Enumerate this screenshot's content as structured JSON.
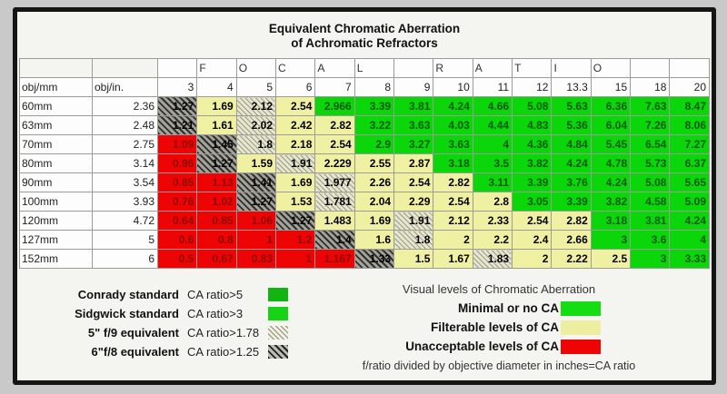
{
  "title": {
    "line1": "Equivalent Chromatic Aberration",
    "line2": "of Achromatic Refractors"
  },
  "colors": {
    "minimal_green": "#0ad60a",
    "filterable_yellow": "#f0f0a2",
    "unacceptable_red": "#ee0404",
    "conrady_green": "#12b412",
    "sidgwick_green": "#16d316",
    "hatch_light_base": "#e6e6cf",
    "hatch_dark_base": "#a3a39b",
    "frame_black": "#151515",
    "page_gray": "#c9c9c9"
  },
  "chart_data": {
    "type": "table",
    "title": "Equivalent Chromatic Aberration of Achromatic Refractors",
    "column_group_label": "FOCAL RATIO",
    "focal_letters": [
      "",
      "F",
      "O",
      "C",
      "A",
      "L",
      "",
      "R",
      "A",
      "T",
      "I",
      "O",
      "",
      ""
    ],
    "columns": [
      "3",
      "4",
      "5",
      "6",
      "7",
      "8",
      "9",
      "10",
      "11",
      "12",
      "13.3",
      "15",
      "18",
      "20"
    ],
    "row_header_labels": {
      "mm": "obj/mm",
      "in": "obj/in."
    },
    "cell_categories": {
      "G": "green - Minimal or no CA",
      "Y": "pale yellow - Filterable levels of CA",
      "R": "red - Unacceptable levels of CA",
      "HL": "light hatch - 5\" f/9 equivalent, CA ratio>1.78",
      "HD": "dark hatch - 6\" f/8 equivalent, CA ratio>1.25"
    },
    "rows": [
      {
        "mm": "60mm",
        "in": "2.36",
        "cells": [
          [
            "1.27",
            "HD"
          ],
          [
            "1.69",
            "Y"
          ],
          [
            "2.12",
            "HL"
          ],
          [
            "2.54",
            "Y"
          ],
          [
            "2.966",
            "G"
          ],
          [
            "3.39",
            "G"
          ],
          [
            "3.81",
            "G"
          ],
          [
            "4.24",
            "G"
          ],
          [
            "4.66",
            "G"
          ],
          [
            "5.08",
            "G"
          ],
          [
            "5.63",
            "G"
          ],
          [
            "6.36",
            "G"
          ],
          [
            "7.63",
            "G"
          ],
          [
            "8.47",
            "G"
          ]
        ]
      },
      {
        "mm": "63mm",
        "in": "2.48",
        "cells": [
          [
            "1.21",
            "HD"
          ],
          [
            "1.61",
            "Y"
          ],
          [
            "2.02",
            "HL"
          ],
          [
            "2.42",
            "Y"
          ],
          [
            "2.82",
            "Y"
          ],
          [
            "3.22",
            "G"
          ],
          [
            "3.63",
            "G"
          ],
          [
            "4.03",
            "G"
          ],
          [
            "4.44",
            "G"
          ],
          [
            "4.83",
            "G"
          ],
          [
            "5.36",
            "G"
          ],
          [
            "6.04",
            "G"
          ],
          [
            "7.26",
            "G"
          ],
          [
            "8.06",
            "G"
          ]
        ]
      },
      {
        "mm": "70mm",
        "in": "2.75",
        "cells": [
          [
            "1.09",
            "R"
          ],
          [
            "1.45",
            "HD"
          ],
          [
            "1.8",
            "HL"
          ],
          [
            "2.18",
            "Y"
          ],
          [
            "2.54",
            "Y"
          ],
          [
            "2.9",
            "G"
          ],
          [
            "3.27",
            "G"
          ],
          [
            "3.63",
            "G"
          ],
          [
            "4",
            "G"
          ],
          [
            "4.36",
            "G"
          ],
          [
            "4.84",
            "G"
          ],
          [
            "5.45",
            "G"
          ],
          [
            "6.54",
            "G"
          ],
          [
            "7.27",
            "G"
          ]
        ]
      },
      {
        "mm": "80mm",
        "in": "3.14",
        "cells": [
          [
            "0.96",
            "R"
          ],
          [
            "1.27",
            "HD"
          ],
          [
            "1.59",
            "Y"
          ],
          [
            "1.91",
            "HL"
          ],
          [
            "2.229",
            "Y"
          ],
          [
            "2.55",
            "Y"
          ],
          [
            "2.87",
            "Y"
          ],
          [
            "3.18",
            "G"
          ],
          [
            "3.5",
            "G"
          ],
          [
            "3.82",
            "G"
          ],
          [
            "4.24",
            "G"
          ],
          [
            "4.78",
            "G"
          ],
          [
            "5.73",
            "G"
          ],
          [
            "6.37",
            "G"
          ]
        ]
      },
      {
        "mm": "90mm",
        "in": "3.54",
        "cells": [
          [
            "0.85",
            "R"
          ],
          [
            "1.13",
            "R"
          ],
          [
            "1.41",
            "HD"
          ],
          [
            "1.69",
            "Y"
          ],
          [
            "1.977",
            "HL"
          ],
          [
            "2.26",
            "Y"
          ],
          [
            "2.54",
            "Y"
          ],
          [
            "2.82",
            "Y"
          ],
          [
            "3.11",
            "G"
          ],
          [
            "3.39",
            "G"
          ],
          [
            "3.76",
            "G"
          ],
          [
            "4.24",
            "G"
          ],
          [
            "5.08",
            "G"
          ],
          [
            "5.65",
            "G"
          ]
        ]
      },
      {
        "mm": "100mm",
        "in": "3.93",
        "cells": [
          [
            "0.76",
            "R"
          ],
          [
            "1.02",
            "R"
          ],
          [
            "1.27",
            "HD"
          ],
          [
            "1.53",
            "Y"
          ],
          [
            "1.781",
            "HL"
          ],
          [
            "2.04",
            "Y"
          ],
          [
            "2.29",
            "Y"
          ],
          [
            "2.54",
            "Y"
          ],
          [
            "2.8",
            "Y"
          ],
          [
            "3.05",
            "G"
          ],
          [
            "3.39",
            "G"
          ],
          [
            "3.82",
            "G"
          ],
          [
            "4.58",
            "G"
          ],
          [
            "5.09",
            "G"
          ]
        ]
      },
      {
        "mm": "120mm",
        "in": "4.72",
        "cells": [
          [
            "0.64",
            "R"
          ],
          [
            "0.85",
            "R"
          ],
          [
            "1.06",
            "R"
          ],
          [
            "1.27",
            "HD"
          ],
          [
            "1.483",
            "Y"
          ],
          [
            "1.69",
            "Y"
          ],
          [
            "1.91",
            "HL"
          ],
          [
            "2.12",
            "Y"
          ],
          [
            "2.33",
            "Y"
          ],
          [
            "2.54",
            "Y"
          ],
          [
            "2.82",
            "Y"
          ],
          [
            "3.18",
            "G"
          ],
          [
            "3.81",
            "G"
          ],
          [
            "4.24",
            "G"
          ]
        ]
      },
      {
        "mm": "127mm",
        "in": "5",
        "cells": [
          [
            "0.6",
            "R"
          ],
          [
            "0.8",
            "R"
          ],
          [
            "1",
            "R"
          ],
          [
            "1.2",
            "R"
          ],
          [
            "1.4",
            "HD"
          ],
          [
            "1.6",
            "Y"
          ],
          [
            "1.8",
            "HL"
          ],
          [
            "2",
            "Y"
          ],
          [
            "2.2",
            "Y"
          ],
          [
            "2.4",
            "Y"
          ],
          [
            "2.66",
            "Y"
          ],
          [
            "3",
            "G"
          ],
          [
            "3.6",
            "G"
          ],
          [
            "4",
            "G"
          ]
        ]
      },
      {
        "mm": "152mm",
        "in": "6",
        "cells": [
          [
            "0.5",
            "R"
          ],
          [
            "0.67",
            "R"
          ],
          [
            "0.83",
            "R"
          ],
          [
            "1",
            "R"
          ],
          [
            "1.167",
            "R"
          ],
          [
            "1.33",
            "HD"
          ],
          [
            "1.5",
            "Y"
          ],
          [
            "1.67",
            "Y"
          ],
          [
            "1.83",
            "HL"
          ],
          [
            "2",
            "Y"
          ],
          [
            "2.22",
            "Y"
          ],
          [
            "2.5",
            "Y"
          ],
          [
            "3",
            "G"
          ],
          [
            "3.33",
            "G"
          ]
        ]
      }
    ]
  },
  "legend_left": {
    "rows": [
      {
        "label": "Conrady standard",
        "ratio": "CA ratio>5",
        "swatch": "conrady"
      },
      {
        "label": "Sidgwick standard",
        "ratio": "CA ratio>3",
        "swatch": "sidgwick"
      },
      {
        "label": "5\" f/9  equivalent",
        "ratio": "CA ratio>1.78",
        "swatch": "hatch-light"
      },
      {
        "label": "6\"f/8 equivalent",
        "ratio": "CA ratio>1.25",
        "swatch": "hatch-dark"
      }
    ]
  },
  "legend_right": {
    "title": "Visual levels of Chromatic Aberration",
    "rows": [
      {
        "label": "Minimal or no CA",
        "swatch": "minimal"
      },
      {
        "label": "Filterable levels of CA",
        "swatch": "filterable"
      },
      {
        "label": "Unacceptable levels of CA",
        "swatch": "unacceptable"
      }
    ],
    "footnote": "f/ratio divided by objective diameter in inches=CA ratio"
  }
}
